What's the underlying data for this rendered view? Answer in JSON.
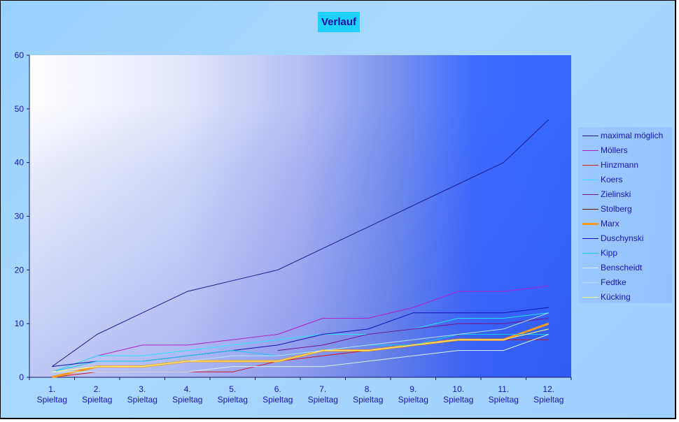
{
  "chart_data": {
    "type": "line",
    "title": "Verlauf",
    "xlabel": "",
    "ylabel": "",
    "ylim": [
      0,
      60
    ],
    "yticks": [
      0,
      10,
      20,
      30,
      40,
      50,
      60
    ],
    "categories": [
      [
        "1.",
        "Spieltag"
      ],
      [
        "2.",
        "Spieltag"
      ],
      [
        "3.",
        "Spieltag"
      ],
      [
        "4.",
        "Spieltag"
      ],
      [
        "5.",
        "Spieltag"
      ],
      [
        "6.",
        "Spieltag"
      ],
      [
        "7.",
        "Spieltag"
      ],
      [
        "8.",
        "Spieltag"
      ],
      [
        "9.",
        "Spieltag"
      ],
      [
        "10.",
        "Spieltag"
      ],
      [
        "11.",
        "Spieltag"
      ],
      [
        "12.",
        "Spieltag"
      ]
    ],
    "legend_position": "right",
    "grid": false,
    "series": [
      {
        "name": "maximal möglich",
        "color": "#1a1a8c",
        "values": [
          2,
          8,
          12,
          16,
          18,
          20,
          24,
          28,
          32,
          36,
          40,
          48
        ]
      },
      {
        "name": "Möllers",
        "color": "#b01fc8",
        "values": [
          1,
          4,
          6,
          6,
          7,
          8,
          11,
          11,
          13,
          16,
          16,
          17
        ]
      },
      {
        "name": "Hinzmann",
        "color": "#d0142a",
        "values": [
          0,
          1,
          1,
          1,
          1,
          3,
          4,
          5,
          6,
          7,
          7,
          7
        ]
      },
      {
        "name": "Koers",
        "color": "#28e6ff",
        "values": [
          1,
          4,
          4,
          5,
          6,
          7,
          8,
          8,
          9,
          11,
          11,
          12
        ]
      },
      {
        "name": "Zielinski",
        "color": "#7a1088",
        "values": [
          null,
          null,
          null,
          null,
          null,
          5,
          6,
          8,
          9,
          10,
          10,
          11
        ]
      },
      {
        "name": "Stolberg",
        "color": "#6a1010",
        "values": [
          0,
          2,
          2,
          3,
          3,
          3,
          5,
          5,
          6,
          7,
          7,
          10
        ]
      },
      {
        "name": "Marx",
        "color": "#ff9a1a",
        "values": [
          0,
          2,
          2,
          3,
          3,
          3,
          5,
          5,
          6,
          7,
          7,
          10
        ]
      },
      {
        "name": "Duschynski",
        "color": "#1010b8",
        "values": [
          2,
          3,
          3,
          4,
          5,
          6,
          8,
          9,
          12,
          12,
          12,
          13
        ]
      },
      {
        "name": "Kipp",
        "color": "#18c8ee",
        "values": [
          1,
          3,
          3,
          4,
          5,
          4,
          5,
          6,
          6,
          8,
          8,
          8
        ]
      },
      {
        "name": "Benscheidt",
        "color": "#d8f4ff",
        "values": [
          1,
          1,
          1,
          1,
          2,
          2,
          2,
          3,
          4,
          5,
          5,
          8
        ]
      },
      {
        "name": "Fedtke",
        "color": "#b4e2ff",
        "values": [
          1,
          2,
          2,
          3,
          4,
          4,
          5,
          6,
          7,
          8,
          9,
          12
        ]
      },
      {
        "name": "Kücking",
        "color": "#ffff80",
        "values": [
          1,
          2,
          2,
          3,
          3,
          3,
          5,
          5,
          6,
          7,
          7,
          9
        ]
      }
    ]
  }
}
